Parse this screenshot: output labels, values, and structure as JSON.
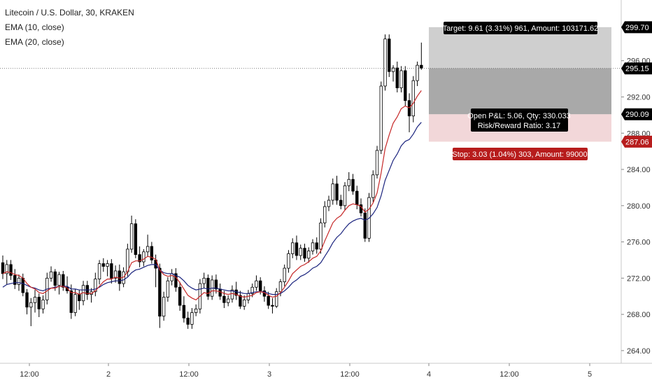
{
  "legend": {
    "title": "Litecoin / U.S. Dollar, 30, KRAKEN",
    "ema10": "EMA (10, close)",
    "ema20": "EMA (20, close)"
  },
  "colors": {
    "candle_up": "#ffffff",
    "candle_down": "#000000",
    "candle_border": "#000000",
    "ema10": "#c62828",
    "ema20": "#1a237e",
    "target_zone": "#cfcfcf",
    "stop_zone": "#f2d7d9",
    "target_badge": "#000000",
    "stop_badge": "#b71c1c",
    "last_price_badge": "#000000"
  },
  "position": {
    "target_label": "Target: 9.61 (3.31%) 961, Amount: 103171.62",
    "stop_label": "Stop: 3.03 (1.04%) 303, Amount: 99000",
    "pnl_label": "Open P&L: 5.06, Qty: 330.033",
    "rr_label": "Risk/Reward Ratio: 3.17",
    "target_price_label": "299.70",
    "entry_price_label": "290.09",
    "stop_price_label": "287.06",
    "last_price_label": "295.15",
    "target_price": 299.7,
    "entry_price": 290.09,
    "stop_price": 287.06,
    "last_price": 295.15
  },
  "chart_data": {
    "type": "candlestick",
    "y_ticks": [
      264,
      268,
      272,
      276,
      280,
      284,
      288,
      292,
      296
    ],
    "y_tick_labels": [
      "264.00",
      "268.00",
      "272.00",
      "276.00",
      "280.00",
      "284.00",
      "288.00",
      "292.00",
      "296.00"
    ],
    "x_ticks": [
      "12:00",
      "2",
      "12:00",
      "3",
      "12:00",
      "4",
      "12:00",
      "5"
    ],
    "ylim": [
      262.6,
      302.7
    ],
    "candles": [
      [
        273.7,
        274.5,
        271.9,
        272.5
      ],
      [
        272.5,
        274.0,
        271.3,
        273.5
      ],
      [
        273.5,
        274.0,
        271.8,
        272.3
      ],
      [
        272.3,
        273.0,
        270.8,
        271.3
      ],
      [
        271.3,
        272.4,
        270.6,
        272.0
      ],
      [
        272.0,
        272.5,
        270.0,
        270.4
      ],
      [
        270.4,
        270.8,
        268.0,
        268.8
      ],
      [
        268.8,
        269.8,
        266.7,
        269.3
      ],
      [
        269.3,
        270.7,
        268.2,
        269.9
      ],
      [
        269.9,
        270.3,
        267.7,
        268.6
      ],
      [
        268.6,
        270.1,
        268.1,
        269.6
      ],
      [
        269.6,
        272.6,
        269.1,
        272.0
      ],
      [
        272.0,
        273.3,
        271.6,
        272.7
      ],
      [
        272.7,
        273.0,
        270.6,
        271.2
      ],
      [
        271.2,
        272.7,
        270.2,
        272.4
      ],
      [
        272.4,
        272.8,
        270.6,
        271.0
      ],
      [
        271.0,
        272.2,
        270.3,
        270.6
      ],
      [
        270.6,
        271.3,
        267.5,
        268.2
      ],
      [
        268.2,
        270.8,
        267.8,
        270.2
      ],
      [
        270.2,
        270.7,
        268.5,
        269.5
      ],
      [
        269.5,
        271.7,
        269.0,
        271.2
      ],
      [
        271.2,
        271.7,
        269.6,
        270.2
      ],
      [
        270.2,
        270.9,
        269.3,
        270.5
      ],
      [
        270.5,
        272.6,
        270.0,
        271.9
      ],
      [
        271.9,
        274.0,
        271.3,
        273.6
      ],
      [
        273.6,
        274.2,
        272.7,
        273.3
      ],
      [
        273.3,
        274.0,
        272.2,
        273.6
      ],
      [
        273.6,
        274.1,
        271.4,
        272.0
      ],
      [
        272.0,
        273.4,
        271.5,
        272.8
      ],
      [
        272.8,
        273.5,
        270.6,
        271.4
      ],
      [
        271.4,
        273.2,
        271.0,
        272.7
      ],
      [
        272.7,
        275.8,
        272.2,
        275.2
      ],
      [
        275.2,
        278.9,
        274.8,
        278.0
      ],
      [
        278.0,
        278.5,
        274.2,
        274.6
      ],
      [
        274.6,
        275.5,
        273.2,
        273.8
      ],
      [
        273.8,
        275.2,
        273.3,
        274.9
      ],
      [
        274.9,
        276.8,
        274.4,
        275.5
      ],
      [
        275.5,
        276.0,
        273.6,
        274.0
      ],
      [
        274.0,
        274.6,
        271.0,
        273.1
      ],
      [
        273.1,
        273.6,
        266.5,
        267.8
      ],
      [
        267.8,
        270.5,
        267.3,
        269.9
      ],
      [
        269.9,
        272.1,
        269.4,
        271.7
      ],
      [
        271.7,
        273.0,
        271.2,
        272.5
      ],
      [
        272.5,
        273.1,
        270.5,
        271.0
      ],
      [
        271.0,
        271.6,
        268.4,
        269.0
      ],
      [
        269.0,
        270.0,
        267.1,
        267.6
      ],
      [
        267.6,
        268.3,
        266.4,
        266.9
      ],
      [
        266.9,
        268.7,
        266.4,
        268.2
      ],
      [
        268.2,
        269.1,
        267.8,
        268.6
      ],
      [
        268.6,
        271.9,
        268.1,
        271.4
      ],
      [
        271.4,
        272.6,
        270.9,
        272.0
      ],
      [
        272.0,
        272.4,
        269.6,
        270.0
      ],
      [
        270.0,
        272.3,
        269.6,
        271.8
      ],
      [
        271.8,
        272.4,
        270.3,
        270.8
      ],
      [
        270.8,
        271.4,
        269.6,
        270.0
      ],
      [
        270.0,
        270.6,
        268.7,
        269.3
      ],
      [
        269.3,
        270.1,
        268.9,
        269.7
      ],
      [
        269.7,
        271.2,
        269.3,
        270.7
      ],
      [
        270.7,
        271.6,
        269.6,
        270.1
      ],
      [
        270.1,
        270.6,
        268.6,
        268.9
      ],
      [
        268.9,
        270.1,
        268.5,
        269.6
      ],
      [
        269.6,
        270.7,
        269.2,
        270.3
      ],
      [
        270.3,
        271.4,
        269.9,
        271.0
      ],
      [
        271.0,
        272.3,
        270.6,
        271.7
      ],
      [
        271.7,
        272.1,
        270.2,
        270.6
      ],
      [
        270.6,
        271.1,
        269.4,
        270.0
      ],
      [
        270.0,
        270.5,
        268.6,
        269.0
      ],
      [
        269.0,
        269.8,
        268.1,
        268.9
      ],
      [
        268.9,
        270.9,
        268.7,
        270.5
      ],
      [
        270.5,
        271.9,
        270.0,
        271.6
      ],
      [
        271.6,
        273.5,
        271.1,
        273.1
      ],
      [
        273.1,
        275.1,
        272.6,
        274.7
      ],
      [
        274.7,
        276.4,
        274.2,
        275.9
      ],
      [
        275.9,
        276.7,
        274.0,
        274.5
      ],
      [
        274.5,
        275.7,
        274.0,
        275.3
      ],
      [
        275.3,
        275.8,
        273.8,
        274.2
      ],
      [
        274.2,
        275.4,
        273.7,
        275.0
      ],
      [
        275.0,
        276.3,
        274.6,
        275.9
      ],
      [
        275.9,
        276.5,
        274.7,
        275.2
      ],
      [
        275.2,
        278.6,
        274.7,
        278.1
      ],
      [
        278.1,
        280.5,
        277.6,
        279.9
      ],
      [
        279.9,
        281.1,
        279.4,
        280.6
      ],
      [
        280.6,
        283.0,
        280.1,
        282.4
      ],
      [
        282.4,
        283.3,
        280.1,
        280.6
      ],
      [
        280.6,
        281.2,
        279.6,
        280.0
      ],
      [
        280.0,
        282.6,
        279.5,
        282.2
      ],
      [
        282.2,
        283.7,
        281.6,
        282.9
      ],
      [
        282.9,
        283.5,
        281.2,
        281.6
      ],
      [
        281.6,
        282.2,
        279.6,
        280.1
      ],
      [
        280.1,
        280.8,
        278.8,
        279.2
      ],
      [
        279.2,
        279.7,
        276.0,
        276.4
      ],
      [
        276.4,
        281.4,
        276.0,
        280.9
      ],
      [
        280.9,
        283.9,
        280.4,
        283.4
      ],
      [
        283.4,
        286.6,
        283.0,
        286.1
      ],
      [
        286.1,
        293.7,
        285.7,
        293.2
      ],
      [
        293.2,
        298.9,
        292.7,
        298.4
      ],
      [
        298.4,
        298.9,
        294.2,
        294.8
      ],
      [
        294.8,
        295.5,
        293.7,
        295.2
      ],
      [
        295.2,
        295.9,
        292.5,
        293.0
      ],
      [
        293.0,
        295.4,
        292.5,
        294.9
      ],
      [
        294.9,
        295.4,
        291.0,
        291.6
      ],
      [
        291.6,
        292.4,
        288.1,
        289.9
      ],
      [
        289.9,
        294.3,
        289.2,
        293.8
      ],
      [
        293.8,
        295.9,
        293.2,
        295.5
      ],
      [
        295.5,
        298.0,
        295.0,
        295.2
      ]
    ],
    "ema10": [
      272.5,
      272.7,
      272.6,
      272.4,
      272.3,
      272.0,
      271.4,
      271.0,
      270.8,
      270.4,
      270.3,
      270.6,
      270.9,
      270.9,
      271.1,
      271.1,
      270.9,
      270.4,
      270.4,
      270.2,
      270.4,
      270.3,
      270.3,
      270.6,
      271.1,
      271.6,
      271.9,
      271.9,
      272.1,
      272.0,
      272.1,
      272.7,
      273.7,
      273.9,
      273.9,
      274.1,
      274.4,
      274.3,
      274.1,
      272.9,
      272.4,
      272.2,
      272.3,
      272.1,
      271.5,
      270.8,
      270.1,
      269.8,
      269.6,
      270.0,
      270.4,
      270.3,
      270.6,
      270.6,
      270.5,
      270.3,
      270.2,
      270.3,
      270.2,
      270.0,
      269.9,
      270.0,
      270.1,
      270.4,
      270.5,
      270.4,
      270.1,
      269.9,
      270.0,
      270.4,
      271.0,
      271.7,
      272.5,
      272.9,
      273.3,
      273.5,
      273.8,
      274.2,
      274.4,
      275.0,
      276.1,
      277.1,
      278.1,
      278.6,
      278.9,
      279.5,
      280.0,
      280.2,
      280.1,
      279.9,
      279.3,
      279.6,
      280.3,
      281.4,
      283.6,
      286.3,
      287.8,
      289.1,
      289.8,
      290.7,
      291.0,
      290.8,
      291.3,
      292.1,
      292.7
    ],
    "ema20": [
      271.0,
      271.3,
      271.4,
      271.5,
      271.5,
      271.4,
      271.2,
      271.0,
      270.9,
      270.7,
      270.6,
      270.8,
      270.9,
      271.0,
      271.1,
      271.1,
      271.1,
      270.8,
      270.8,
      270.7,
      270.7,
      270.7,
      270.7,
      270.8,
      271.0,
      271.3,
      271.5,
      271.6,
      271.7,
      271.7,
      271.8,
      272.1,
      272.6,
      272.9,
      273.0,
      273.2,
      273.4,
      273.5,
      273.5,
      272.9,
      272.6,
      272.5,
      272.5,
      272.3,
      272.1,
      271.7,
      271.2,
      270.9,
      270.7,
      270.8,
      270.9,
      270.8,
      270.9,
      270.9,
      270.8,
      270.7,
      270.6,
      270.6,
      270.5,
      270.4,
      270.3,
      270.3,
      270.4,
      270.5,
      270.5,
      270.5,
      270.3,
      270.2,
      270.2,
      270.3,
      270.6,
      271.0,
      271.5,
      271.8,
      272.2,
      272.4,
      272.7,
      273.1,
      273.3,
      273.7,
      274.4,
      275.1,
      275.9,
      276.5,
      276.9,
      277.5,
      278.0,
      278.3,
      278.5,
      278.6,
      278.4,
      278.6,
      279.1,
      279.8,
      281.1,
      282.8,
      283.9,
      285.0,
      285.7,
      286.6,
      287.1,
      287.3,
      287.9,
      288.7,
      289.2
    ]
  }
}
